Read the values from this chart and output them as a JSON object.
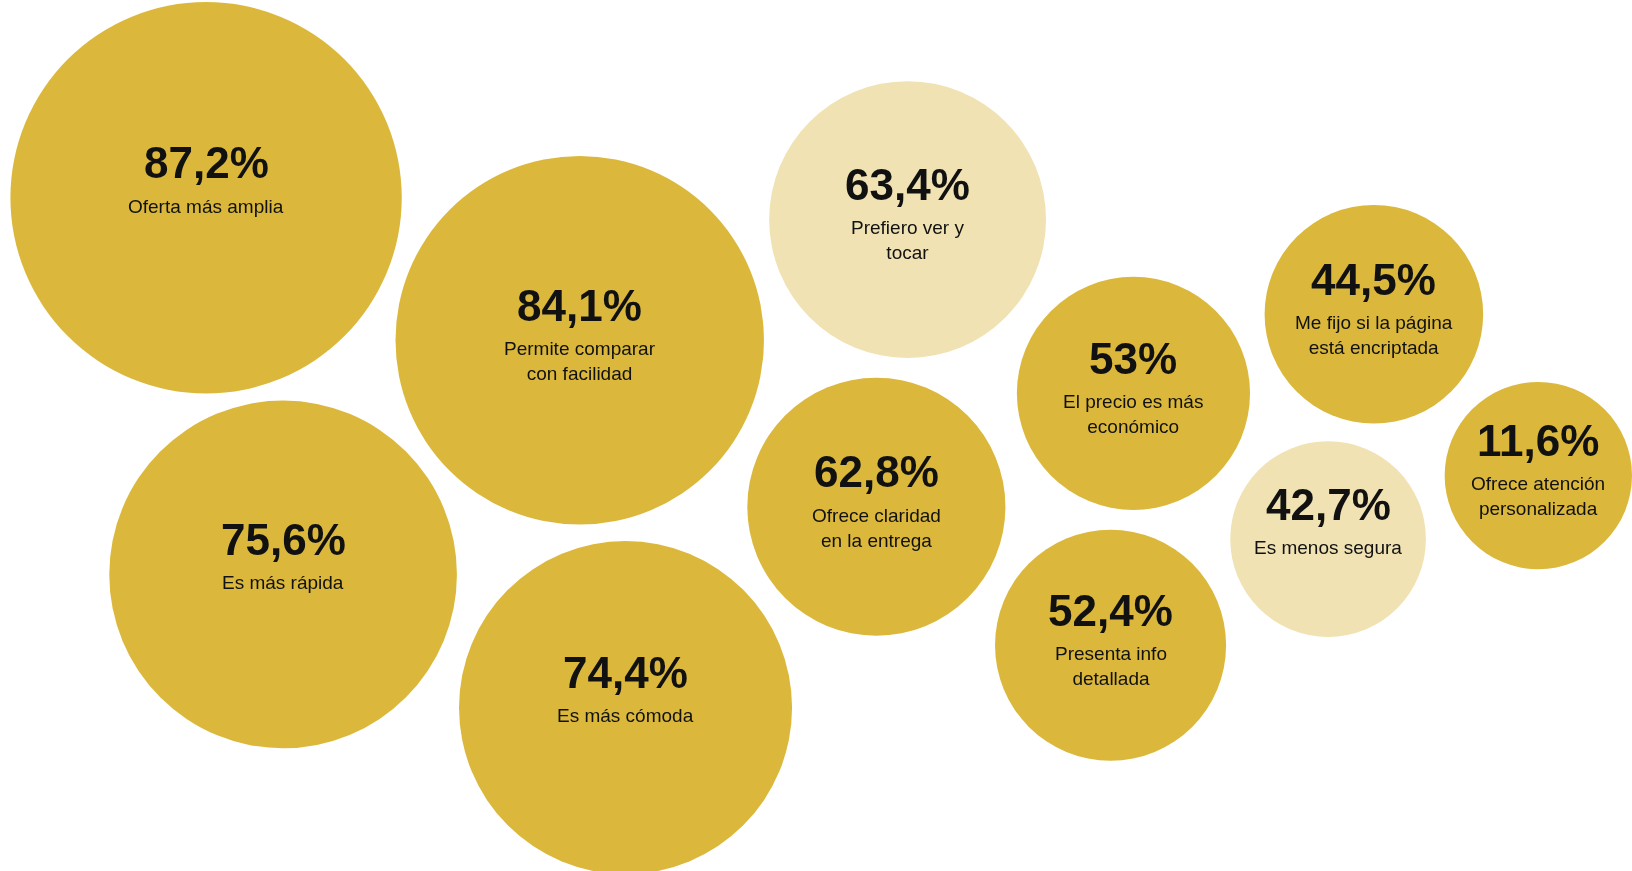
{
  "chart_data": {
    "type": "other",
    "categories": [
      "Oferta más amplia",
      "Permite comparar\ncon facilidad",
      "Es más rápida",
      "Es más cómoda",
      "Prefiero ver y\ntocar",
      "Ofrece claridad\nen la entrega",
      "El precio es más\neconómico",
      "Presenta info\ndetallada",
      "Me fijo si la página\nestá encriptada",
      "Es menos segura",
      "Ofrece atención\npersonalizada"
    ],
    "values": [
      87.2,
      84.1,
      75.6,
      74.4,
      63.4,
      62.8,
      53,
      52.4,
      44.5,
      42.7,
      11.6
    ],
    "value_labels": [
      "87,2%",
      "84,1%",
      "75,6%",
      "74,4%",
      "63,4%",
      "62,8%",
      "53%",
      "52,4%",
      "44,5%",
      "42,7%",
      "11,6%"
    ],
    "colors": [
      "#dbb83c",
      "#dbb83c",
      "#dbb83c",
      "#dbb83c",
      "#f0e2b2",
      "#dbb83c",
      "#dbb83c",
      "#dbb83c",
      "#dbb83c",
      "#f0e2b2",
      "#dbb83c"
    ]
  }
}
